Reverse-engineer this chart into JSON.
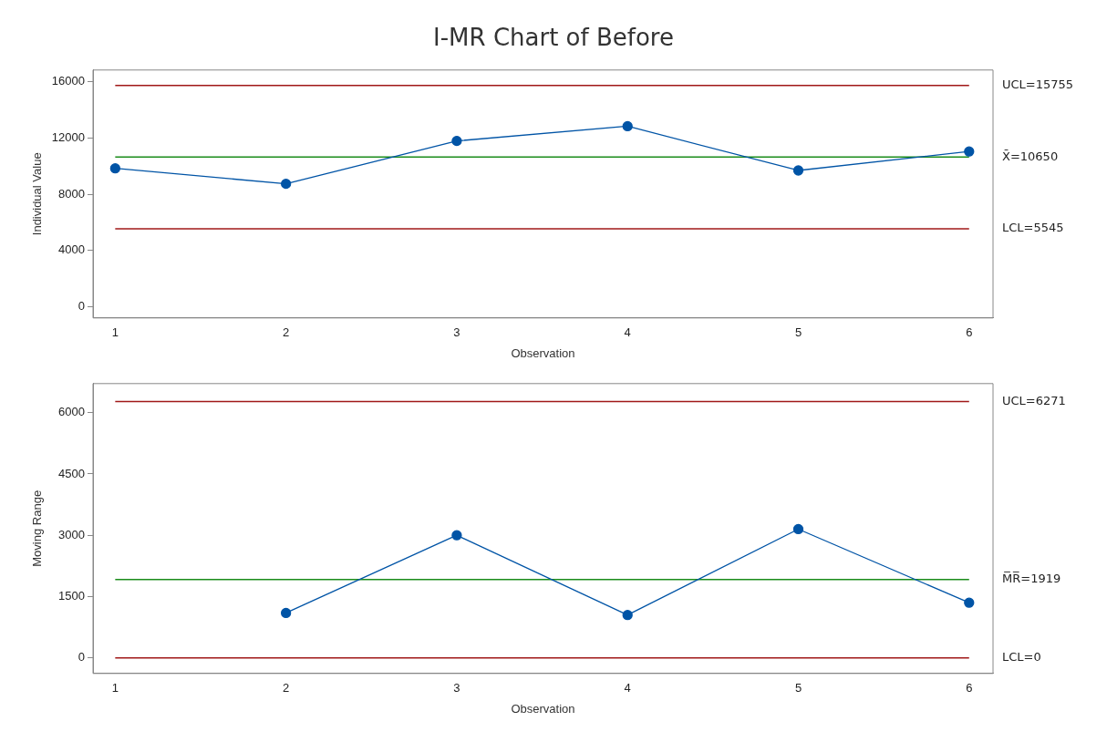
{
  "chart_data": [
    {
      "type": "line",
      "title": "I-MR Chart of Before",
      "xlabel": "Observation",
      "ylabel": "Individual Value",
      "x": [
        1,
        2,
        3,
        4,
        5,
        6
      ],
      "xlim": [
        0.87,
        6.14
      ],
      "xticks": [
        1,
        2,
        3,
        4,
        5,
        6
      ],
      "ylim": [
        -800,
        16850
      ],
      "yticks": [
        0,
        4000,
        8000,
        12000,
        16000
      ],
      "marker": "circle",
      "series": [
        {
          "color": "#0054a6",
          "values": [
            9850,
            8750,
            11800,
            12850,
            9700,
            11050
          ]
        }
      ],
      "ref_lines": [
        {
          "axis": "y",
          "value": 15755,
          "label": "UCL=15755",
          "color": "#a01818"
        },
        {
          "axis": "y",
          "value": 10650,
          "label": "X̄=10650",
          "color": "#1a8c1a"
        },
        {
          "axis": "y",
          "value": 5545,
          "label": "LCL=5545",
          "color": "#a01818"
        }
      ]
    },
    {
      "type": "line",
      "xlabel": "Observation",
      "ylabel": "Moving Range",
      "xlim": [
        0.87,
        6.14
      ],
      "xticks": [
        1,
        2,
        3,
        4,
        5,
        6
      ],
      "ylim": [
        -380,
        6710
      ],
      "yticks": [
        0,
        1500,
        3000,
        4500,
        6000
      ],
      "marker": "circle",
      "series": [
        {
          "color": "#0054a6",
          "x": [
            2,
            3,
            4,
            5,
            6
          ],
          "values": [
            1100,
            3000,
            1050,
            3150,
            1350
          ]
        }
      ],
      "ref_lines": [
        {
          "axis": "y",
          "value": 6271,
          "label": "UCL=6271",
          "color": "#a01818"
        },
        {
          "axis": "y",
          "value": 1919,
          "label": "M̅R̅=1919",
          "color": "#1a8c1a"
        },
        {
          "axis": "y",
          "value": 0,
          "label": "LCL=0",
          "color": "#a01818"
        }
      ]
    }
  ]
}
